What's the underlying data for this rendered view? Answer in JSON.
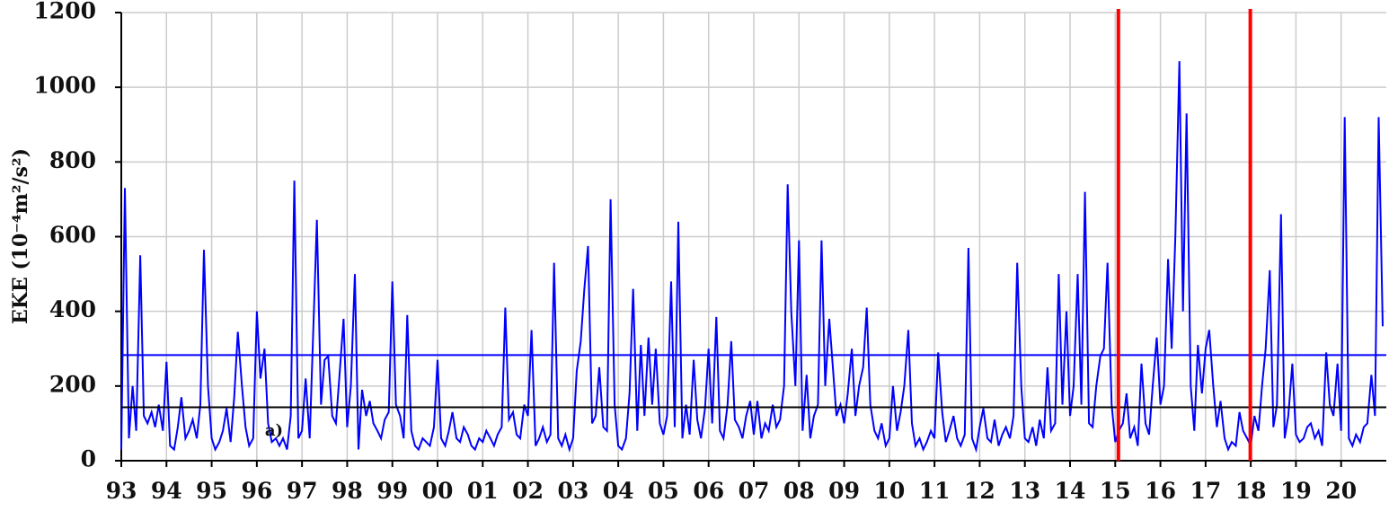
{
  "chart_data": {
    "type": "line",
    "ylabel": "EKE (10⁻⁴m²/s²)",
    "color": "#0000ff",
    "grid": true,
    "xlim": [
      1993,
      2021
    ],
    "ylim": [
      0,
      1200
    ],
    "yticks": [
      0,
      200,
      400,
      600,
      800,
      1000,
      1200
    ],
    "xticks": [
      {
        "value": 1993,
        "label": "93"
      },
      {
        "value": 1994,
        "label": "94"
      },
      {
        "value": 1995,
        "label": "95"
      },
      {
        "value": 1996,
        "label": "96"
      },
      {
        "value": 1997,
        "label": "97"
      },
      {
        "value": 1998,
        "label": "98"
      },
      {
        "value": 1999,
        "label": "99"
      },
      {
        "value": 2000,
        "label": "00"
      },
      {
        "value": 2001,
        "label": "01"
      },
      {
        "value": 2002,
        "label": "02"
      },
      {
        "value": 2003,
        "label": "03"
      },
      {
        "value": 2004,
        "label": "04"
      },
      {
        "value": 2005,
        "label": "05"
      },
      {
        "value": 2006,
        "label": "06"
      },
      {
        "value": 2007,
        "label": "07"
      },
      {
        "value": 2008,
        "label": "08"
      },
      {
        "value": 2009,
        "label": "09"
      },
      {
        "value": 2010,
        "label": "10"
      },
      {
        "value": 2011,
        "label": "11"
      },
      {
        "value": 2012,
        "label": "12"
      },
      {
        "value": 2013,
        "label": "13"
      },
      {
        "value": 2014,
        "label": "14"
      },
      {
        "value": 2015,
        "label": "15"
      },
      {
        "value": 2016,
        "label": "16"
      },
      {
        "value": 2017,
        "label": "17"
      },
      {
        "value": 2018,
        "label": "18"
      },
      {
        "value": 2019,
        "label": "19"
      },
      {
        "value": 2020,
        "label": "20"
      }
    ],
    "hlines": [
      {
        "value": 283,
        "color": "#0000ff"
      },
      {
        "value": 143,
        "color": "#000000"
      }
    ],
    "vlines": [
      {
        "value": 2015.07,
        "color": "#ff0000"
      },
      {
        "value": 2017.99,
        "color": "#ff0000"
      }
    ],
    "annotations": [
      {
        "text": "a)",
        "x": 1996.38,
        "y": 79
      }
    ],
    "x": [
      1993.0,
      1993.08,
      1993.17,
      1993.25,
      1993.33,
      1993.42,
      1993.5,
      1993.58,
      1993.67,
      1993.75,
      1993.83,
      1993.92,
      1994.0,
      1994.08,
      1994.17,
      1994.25,
      1994.33,
      1994.42,
      1994.5,
      1994.58,
      1994.67,
      1994.75,
      1994.83,
      1994.92,
      1995.0,
      1995.08,
      1995.17,
      1995.25,
      1995.33,
      1995.42,
      1995.5,
      1995.58,
      1995.67,
      1995.75,
      1995.83,
      1995.92,
      1996.0,
      1996.08,
      1996.17,
      1996.25,
      1996.33,
      1996.42,
      1996.5,
      1996.58,
      1996.67,
      1996.75,
      1996.83,
      1996.92,
      1997.0,
      1997.08,
      1997.17,
      1997.25,
      1997.33,
      1997.42,
      1997.5,
      1997.58,
      1997.67,
      1997.75,
      1997.83,
      1997.92,
      1998.0,
      1998.08,
      1998.17,
      1998.25,
      1998.33,
      1998.42,
      1998.5,
      1998.58,
      1998.67,
      1998.75,
      1998.83,
      1998.92,
      1999.0,
      1999.08,
      1999.17,
      1999.25,
      1999.33,
      1999.42,
      1999.5,
      1999.58,
      1999.67,
      1999.75,
      1999.83,
      1999.92,
      2000.0,
      2000.08,
      2000.17,
      2000.25,
      2000.33,
      2000.42,
      2000.5,
      2000.58,
      2000.67,
      2000.75,
      2000.83,
      2000.92,
      2001.0,
      2001.08,
      2001.17,
      2001.25,
      2001.33,
      2001.42,
      2001.5,
      2001.58,
      2001.67,
      2001.75,
      2001.83,
      2001.92,
      2002.0,
      2002.08,
      2002.17,
      2002.25,
      2002.33,
      2002.42,
      2002.5,
      2002.58,
      2002.67,
      2002.75,
      2002.83,
      2002.92,
      2003.0,
      2003.08,
      2003.17,
      2003.25,
      2003.33,
      2003.42,
      2003.5,
      2003.58,
      2003.67,
      2003.75,
      2003.83,
      2003.92,
      2004.0,
      2004.08,
      2004.17,
      2004.25,
      2004.33,
      2004.42,
      2004.5,
      2004.58,
      2004.67,
      2004.75,
      2004.83,
      2004.92,
      2005.0,
      2005.08,
      2005.17,
      2005.25,
      2005.33,
      2005.42,
      2005.5,
      2005.58,
      2005.67,
      2005.75,
      2005.83,
      2005.92,
      2006.0,
      2006.08,
      2006.17,
      2006.25,
      2006.33,
      2006.42,
      2006.5,
      2006.58,
      2006.67,
      2006.75,
      2006.83,
      2006.92,
      2007.0,
      2007.08,
      2007.17,
      2007.25,
      2007.33,
      2007.42,
      2007.5,
      2007.58,
      2007.67,
      2007.75,
      2007.83,
      2007.92,
      2008.0,
      2008.08,
      2008.17,
      2008.25,
      2008.33,
      2008.42,
      2008.5,
      2008.58,
      2008.67,
      2008.75,
      2008.83,
      2008.92,
      2009.0,
      2009.08,
      2009.17,
      2009.25,
      2009.33,
      2009.42,
      2009.5,
      2009.58,
      2009.67,
      2009.75,
      2009.83,
      2009.92,
      2010.0,
      2010.08,
      2010.17,
      2010.25,
      2010.33,
      2010.42,
      2010.5,
      2010.58,
      2010.67,
      2010.75,
      2010.83,
      2010.92,
      2011.0,
      2011.08,
      2011.17,
      2011.25,
      2011.33,
      2011.42,
      2011.5,
      2011.58,
      2011.67,
      2011.75,
      2011.83,
      2011.92,
      2012.0,
      2012.08,
      2012.17,
      2012.25,
      2012.33,
      2012.42,
      2012.5,
      2012.58,
      2012.67,
      2012.75,
      2012.83,
      2012.92,
      2013.0,
      2013.08,
      2013.17,
      2013.25,
      2013.33,
      2013.42,
      2013.5,
      2013.58,
      2013.67,
      2013.75,
      2013.83,
      2013.92,
      2014.0,
      2014.08,
      2014.17,
      2014.25,
      2014.33,
      2014.42,
      2014.5,
      2014.58,
      2014.67,
      2014.75,
      2014.83,
      2014.92,
      2015.0,
      2015.08,
      2015.17,
      2015.25,
      2015.33,
      2015.42,
      2015.5,
      2015.58,
      2015.67,
      2015.75,
      2015.83,
      2015.92,
      2016.0,
      2016.08,
      2016.17,
      2016.25,
      2016.33,
      2016.42,
      2016.5,
      2016.58,
      2016.67,
      2016.75,
      2016.83,
      2016.92,
      2017.0,
      2017.08,
      2017.17,
      2017.25,
      2017.33,
      2017.42,
      2017.5,
      2017.58,
      2017.67,
      2017.75,
      2017.83,
      2017.92,
      2018.0,
      2018.08,
      2018.17,
      2018.25,
      2018.33,
      2018.42,
      2018.5,
      2018.58,
      2018.67,
      2018.75,
      2018.83,
      2018.92,
      2019.0,
      2019.08,
      2019.17,
      2019.25,
      2019.33,
      2019.42,
      2019.5,
      2019.58,
      2019.67,
      2019.75,
      2019.83,
      2019.92,
      2020.0,
      2020.08,
      2020.17,
      2020.25,
      2020.33,
      2020.42,
      2020.5,
      2020.58,
      2020.67,
      2020.75,
      2020.83,
      2020.92
    ],
    "values": [
      30,
      730,
      60,
      200,
      80,
      550,
      120,
      100,
      130,
      90,
      150,
      80,
      265,
      40,
      30,
      90,
      170,
      60,
      80,
      110,
      60,
      150,
      565,
      200,
      60,
      30,
      50,
      80,
      140,
      50,
      170,
      345,
      200,
      90,
      40,
      60,
      400,
      220,
      300,
      100,
      50,
      60,
      40,
      60,
      30,
      120,
      750,
      60,
      80,
      220,
      60,
      350,
      645,
      150,
      270,
      280,
      120,
      100,
      230,
      380,
      90,
      200,
      500,
      30,
      190,
      120,
      160,
      100,
      80,
      60,
      110,
      130,
      480,
      150,
      120,
      60,
      390,
      80,
      40,
      30,
      60,
      50,
      40,
      90,
      270,
      60,
      40,
      80,
      130,
      60,
      50,
      90,
      70,
      40,
      30,
      60,
      50,
      80,
      60,
      40,
      70,
      90,
      410,
      110,
      130,
      70,
      60,
      150,
      120,
      350,
      40,
      60,
      90,
      50,
      70,
      530,
      60,
      40,
      70,
      30,
      60,
      240,
      320,
      460,
      575,
      100,
      120,
      250,
      90,
      80,
      700,
      150,
      40,
      30,
      60,
      180,
      460,
      80,
      310,
      120,
      330,
      150,
      300,
      100,
      70,
      120,
      480,
      90,
      640,
      60,
      150,
      70,
      270,
      110,
      60,
      140,
      300,
      100,
      385,
      80,
      60,
      150,
      320,
      110,
      90,
      60,
      120,
      160,
      70,
      160,
      60,
      100,
      80,
      150,
      90,
      110,
      200,
      740,
      400,
      200,
      590,
      80,
      230,
      60,
      120,
      150,
      590,
      200,
      380,
      250,
      120,
      150,
      100,
      180,
      300,
      120,
      200,
      250,
      410,
      150,
      80,
      60,
      100,
      40,
      60,
      200,
      80,
      130,
      200,
      350,
      100,
      40,
      60,
      30,
      50,
      80,
      60,
      290,
      130,
      50,
      80,
      120,
      60,
      40,
      70,
      570,
      60,
      30,
      90,
      140,
      60,
      50,
      110,
      40,
      70,
      90,
      60,
      120,
      530,
      200,
      60,
      50,
      90,
      40,
      110,
      60,
      250,
      80,
      100,
      500,
      150,
      400,
      120,
      200,
      500,
      150,
      720,
      100,
      90,
      200,
      280,
      300,
      530,
      150,
      50,
      80,
      100,
      180,
      60,
      90,
      40,
      260,
      100,
      70,
      200,
      330,
      150,
      200,
      540,
      300,
      600,
      1070,
      400,
      930,
      200,
      80,
      310,
      180,
      300,
      350,
      200,
      90,
      160,
      60,
      30,
      50,
      40,
      130,
      80,
      60,
      40,
      120,
      80,
      200,
      300,
      510,
      90,
      150,
      660,
      60,
      120,
      260,
      70,
      50,
      60,
      90,
      100,
      60,
      80,
      40,
      290,
      150,
      120,
      260,
      80,
      920,
      60,
      40,
      70,
      50,
      90,
      100,
      230,
      120,
      920,
      360
    ]
  }
}
